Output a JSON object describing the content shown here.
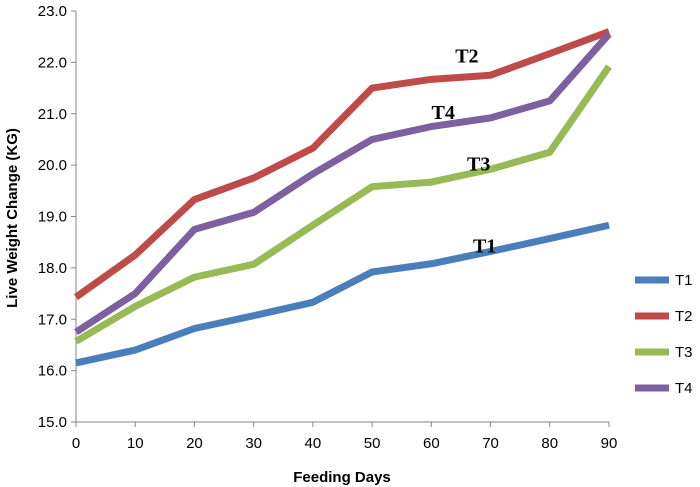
{
  "chart_data": {
    "type": "line",
    "xlabel": "Feeding Days",
    "ylabel": "Live Weight Change (KG)",
    "x": [
      0,
      10,
      20,
      30,
      40,
      50,
      60,
      70,
      80,
      90
    ],
    "xlim": [
      0,
      90
    ],
    "ylim": [
      15.0,
      23.0
    ],
    "x_ticks": [
      "0",
      "10",
      "20",
      "30",
      "40",
      "50",
      "60",
      "70",
      "80",
      "90"
    ],
    "y_ticks": [
      "15.0",
      "16.0",
      "17.0",
      "18.0",
      "19.0",
      "20.0",
      "21.0",
      "22.0",
      "23.0"
    ],
    "grid": false,
    "legend_position": "right",
    "series": [
      {
        "name": "T1",
        "color": "#4a7ebb",
        "values": [
          16.15,
          16.4,
          16.82,
          17.07,
          17.33,
          17.92,
          18.08,
          18.32,
          18.57,
          18.83
        ]
      },
      {
        "name": "T2",
        "color": "#be4b48",
        "values": [
          17.43,
          18.25,
          19.33,
          19.75,
          20.33,
          21.5,
          21.67,
          21.75,
          22.17,
          22.6
        ]
      },
      {
        "name": "T3",
        "color": "#98b954",
        "values": [
          16.57,
          17.25,
          17.82,
          18.07,
          18.83,
          19.58,
          19.67,
          19.92,
          20.25,
          21.92
        ]
      },
      {
        "name": "T4",
        "color": "#7d60a0",
        "values": [
          16.75,
          17.5,
          18.75,
          19.08,
          19.83,
          20.5,
          20.75,
          20.92,
          21.25,
          22.55
        ]
      }
    ],
    "annotations": [
      {
        "text": "T2",
        "x": 66,
        "y": 22.0
      },
      {
        "text": "T4",
        "x": 62,
        "y": 20.9
      },
      {
        "text": "T3",
        "x": 68,
        "y": 19.9
      },
      {
        "text": "T1",
        "x": 69,
        "y": 18.3
      }
    ]
  }
}
